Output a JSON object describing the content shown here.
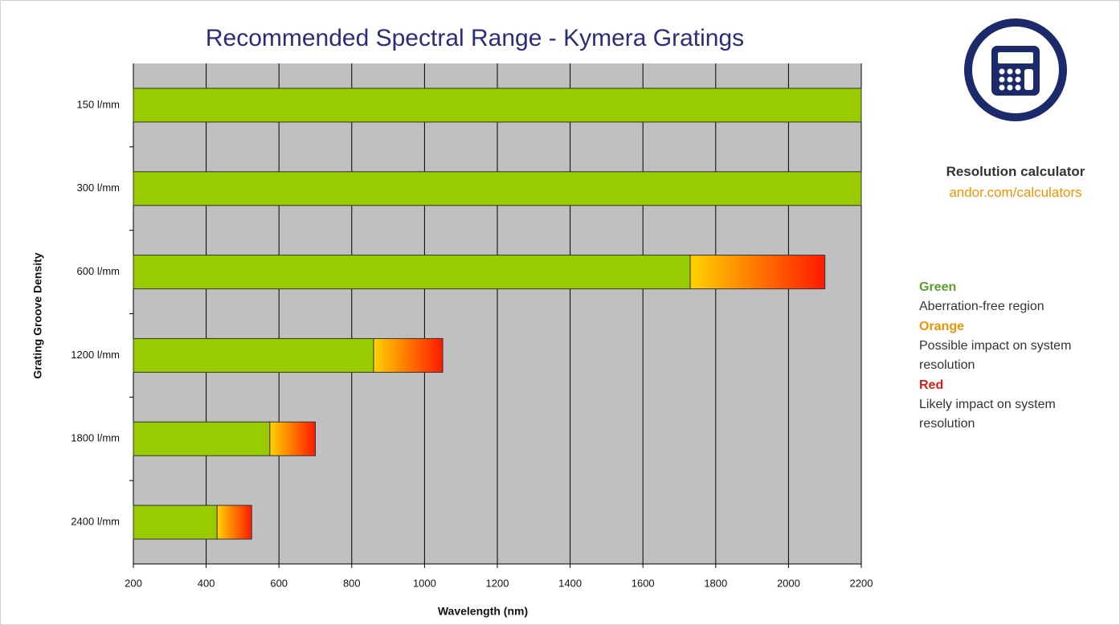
{
  "chart_data": {
    "type": "range-bar",
    "title": "Recommended Spectral Range - Kymera Gratings",
    "x_label": "Wavelength (nm)",
    "y_label": "Grating Groove Density",
    "categories": [
      "150 l/mm",
      "300 l/mm",
      "600 l/mm",
      "1200 l/mm",
      "1800 l/mm",
      "2400 l/mm"
    ],
    "series": [
      {
        "name": "Green",
        "color": "#99cc00",
        "values": [
          [
            200,
            2200
          ],
          [
            200,
            2200
          ],
          [
            200,
            1730
          ],
          [
            200,
            860
          ],
          [
            200,
            575
          ],
          [
            200,
            430
          ]
        ]
      },
      {
        "colors": [
          "#ffd200",
          "#ff1a00"
        ],
        "values": [
          null,
          null,
          [
            1730,
            2100
          ],
          [
            860,
            1050
          ],
          [
            575,
            700
          ],
          [
            430,
            525
          ]
        ]
      }
    ],
    "xlim": [
      200,
      2200
    ],
    "xticks": [
      200,
      400,
      600,
      800,
      1000,
      1200,
      1400,
      1600,
      1800,
      2000,
      2200
    ],
    "grid": true,
    "background": "#c0c0c0"
  },
  "sidebar": {
    "calculator_title": "Resolution calculator",
    "calculator_link": "andor.com/calculators",
    "legend": [
      {
        "label": "Green",
        "color": "#5aa02c",
        "description": "Aberration-free region"
      },
      {
        "label": "Orange",
        "color": "#f39200",
        "description": "Possible impact on system resolution"
      },
      {
        "label": "Red",
        "color": "#d81e1e",
        "description": "Likely impact on system resolution"
      }
    ]
  }
}
